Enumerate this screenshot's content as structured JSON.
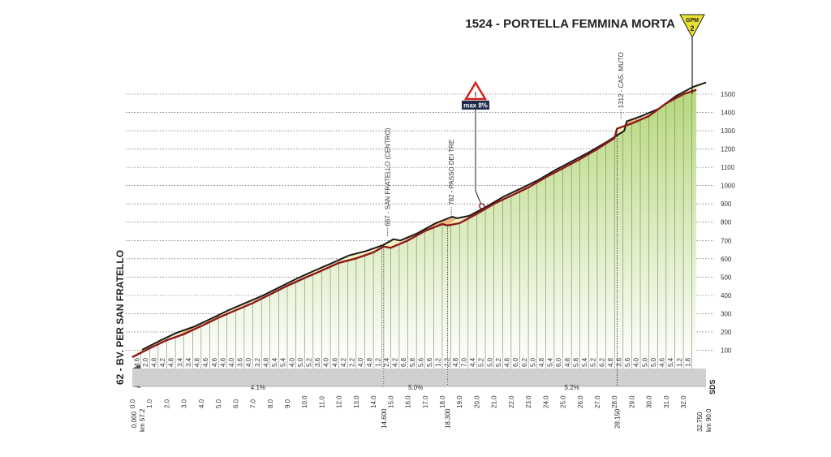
{
  "chart_data": {
    "type": "area",
    "title": "",
    "summit_label": "1524 - PORTELLA FEMMINA MORTA",
    "kom_badge": {
      "text": "GPM",
      "category": "2",
      "color": "#e8e030"
    },
    "start_label": "62 - BV. PER SAN FRATELLO",
    "warning_label": "max 8%",
    "logo_text": "SDS",
    "x_ticks": [
      "0.0",
      "1.0",
      "2.0",
      "3.0",
      "4.0",
      "5.0",
      "6.0",
      "7.0",
      "8.0",
      "9.0",
      "10.0",
      "11.0",
      "12.0",
      "13.0",
      "14.0",
      "15.0",
      "16.0",
      "17.0",
      "18.0",
      "19.0",
      "20.0",
      "21.0",
      "22.0",
      "23.0",
      "24.0",
      "25.0",
      "26.0",
      "27.0",
      "28.0",
      "29.0",
      "30.0",
      "31.0",
      "32.0"
    ],
    "x_tick_values": [
      0,
      1,
      2,
      3,
      4,
      5,
      6,
      7,
      8,
      9,
      10,
      11,
      12,
      13,
      14,
      15,
      16,
      17,
      18,
      19,
      20,
      21,
      22,
      23,
      24,
      25,
      26,
      27,
      28,
      29,
      30,
      31,
      32
    ],
    "y_ticks": [
      "100",
      "200",
      "300",
      "400",
      "500",
      "600",
      "700",
      "800",
      "900",
      "1000",
      "1100",
      "1200",
      "1300",
      "1400",
      "1500"
    ],
    "y_tick_values": [
      100,
      200,
      300,
      400,
      500,
      600,
      700,
      800,
      900,
      1000,
      1100,
      1200,
      1300,
      1400,
      1500
    ],
    "xlim": [
      0,
      32.75
    ],
    "ylim": [
      0,
      1500
    ],
    "profile": [
      {
        "km": 0.0,
        "alt": 62
      },
      {
        "km": 1.0,
        "alt": 110
      },
      {
        "km": 2.0,
        "alt": 155
      },
      {
        "km": 3.0,
        "alt": 188
      },
      {
        "km": 4.0,
        "alt": 232
      },
      {
        "km": 5.0,
        "alt": 278
      },
      {
        "km": 6.0,
        "alt": 318
      },
      {
        "km": 7.0,
        "alt": 358
      },
      {
        "km": 8.0,
        "alt": 405
      },
      {
        "km": 9.0,
        "alt": 452
      },
      {
        "km": 10.0,
        "alt": 495
      },
      {
        "km": 11.0,
        "alt": 535
      },
      {
        "km": 12.0,
        "alt": 578
      },
      {
        "km": 13.0,
        "alt": 602
      },
      {
        "km": 14.0,
        "alt": 635
      },
      {
        "km": 14.6,
        "alt": 667
      },
      {
        "km": 15.0,
        "alt": 660
      },
      {
        "km": 16.0,
        "alt": 700
      },
      {
        "km": 17.0,
        "alt": 752
      },
      {
        "km": 18.0,
        "alt": 790
      },
      {
        "km": 18.3,
        "alt": 782
      },
      {
        "km": 19.0,
        "alt": 795
      },
      {
        "km": 20.0,
        "alt": 845
      },
      {
        "km": 21.0,
        "alt": 900
      },
      {
        "km": 22.0,
        "alt": 945
      },
      {
        "km": 23.0,
        "alt": 990
      },
      {
        "km": 24.0,
        "alt": 1045
      },
      {
        "km": 25.0,
        "alt": 1095
      },
      {
        "km": 26.0,
        "alt": 1145
      },
      {
        "km": 27.0,
        "alt": 1200
      },
      {
        "km": 28.0,
        "alt": 1260
      },
      {
        "km": 28.15,
        "alt": 1312
      },
      {
        "km": 29.0,
        "alt": 1340
      },
      {
        "km": 30.0,
        "alt": 1380
      },
      {
        "km": 31.0,
        "alt": 1450
      },
      {
        "km": 32.0,
        "alt": 1500
      },
      {
        "km": 32.75,
        "alt": 1524
      }
    ],
    "gradients": [
      {
        "km": 0.25,
        "label": "4.6"
      },
      {
        "km": 0.75,
        "label": "2.0"
      },
      {
        "km": 1.25,
        "label": "4.8"
      },
      {
        "km": 1.75,
        "label": "4.2"
      },
      {
        "km": 2.25,
        "label": "4.8"
      },
      {
        "km": 2.75,
        "label": "3.4"
      },
      {
        "km": 3.25,
        "label": "3.4"
      },
      {
        "km": 3.75,
        "label": "4.8"
      },
      {
        "km": 4.25,
        "label": "4.6"
      },
      {
        "km": 4.75,
        "label": "4.6"
      },
      {
        "km": 5.25,
        "label": "4.6"
      },
      {
        "km": 5.75,
        "label": "4.0"
      },
      {
        "km": 6.25,
        "label": "3.6"
      },
      {
        "km": 6.75,
        "label": "4.0"
      },
      {
        "km": 7.25,
        "label": "3.2"
      },
      {
        "km": 7.75,
        "label": "4.8"
      },
      {
        "km": 8.25,
        "label": "5.4"
      },
      {
        "km": 8.75,
        "label": "5.4"
      },
      {
        "km": 9.25,
        "label": "4.0"
      },
      {
        "km": 9.75,
        "label": "5.0"
      },
      {
        "km": 10.25,
        "label": "5.2"
      },
      {
        "km": 10.75,
        "label": "3.6"
      },
      {
        "km": 11.25,
        "label": "4.0"
      },
      {
        "km": 11.75,
        "label": "4.6"
      },
      {
        "km": 12.25,
        "label": "4.2"
      },
      {
        "km": 12.75,
        "label": "2.2"
      },
      {
        "km": 13.25,
        "label": "4.0"
      },
      {
        "km": 13.75,
        "label": "4.8"
      },
      {
        "km": 14.25,
        "label": "1.2"
      },
      {
        "km": 14.75,
        "label": "2.4"
      },
      {
        "km": 15.25,
        "label": "4.2"
      },
      {
        "km": 15.75,
        "label": "6.8"
      },
      {
        "km": 16.25,
        "label": "5.8"
      },
      {
        "km": 16.75,
        "label": "5.6"
      },
      {
        "km": 17.25,
        "label": "5.6"
      },
      {
        "km": 17.75,
        "label": "1.2"
      },
      {
        "km": 18.25,
        "label": "2.2"
      },
      {
        "km": 18.75,
        "label": "4.8"
      },
      {
        "km": 19.25,
        "label": "7.0"
      },
      {
        "km": 19.75,
        "label": "4.4"
      },
      {
        "km": 20.25,
        "label": "5.2"
      },
      {
        "km": 20.75,
        "label": "5.0"
      },
      {
        "km": 21.25,
        "label": "5.2"
      },
      {
        "km": 21.75,
        "label": "4.8"
      },
      {
        "km": 22.25,
        "label": "6.0"
      },
      {
        "km": 22.75,
        "label": "6.2"
      },
      {
        "km": 23.25,
        "label": "5.0"
      },
      {
        "km": 23.75,
        "label": "4.8"
      },
      {
        "km": 24.25,
        "label": "5.4"
      },
      {
        "km": 24.75,
        "label": "6.0"
      },
      {
        "km": 25.25,
        "label": "4.8"
      },
      {
        "km": 25.75,
        "label": "5.8"
      },
      {
        "km": 26.25,
        "label": "5.4"
      },
      {
        "km": 26.75,
        "label": "5.2"
      },
      {
        "km": 27.25,
        "label": "6.2"
      },
      {
        "km": 27.75,
        "label": "4.8"
      },
      {
        "km": 28.25,
        "label": "3.6"
      },
      {
        "km": 28.75,
        "label": "5.6"
      },
      {
        "km": 29.25,
        "label": "4.0"
      },
      {
        "km": 29.75,
        "label": "5.0"
      },
      {
        "km": 30.25,
        "label": "5.0"
      },
      {
        "km": 30.75,
        "label": "4.6"
      },
      {
        "km": 31.25,
        "label": "5.4"
      },
      {
        "km": 31.75,
        "label": "1.2"
      },
      {
        "km": 32.25,
        "label": "1.8"
      }
    ],
    "sections": [
      {
        "from": 0.0,
        "to": 14.6,
        "label": "4.1%"
      },
      {
        "from": 14.6,
        "to": 18.3,
        "label": "5.0%"
      },
      {
        "from": 18.3,
        "to": 32.75,
        "label": "5.2%"
      }
    ],
    "markers": [
      {
        "km": 14.6,
        "alt": 667,
        "label": "667 - SAN FRATELLO (CENTRO)",
        "dist": "14.600"
      },
      {
        "km": 18.3,
        "alt": 782,
        "label": "782 - PASSO DEI TRE",
        "dist": "18.300"
      },
      {
        "km": 28.15,
        "alt": 1312,
        "label": "1312 - CAS. MUTO",
        "dist": "28.150"
      }
    ],
    "warning_km": 20.3,
    "start_dist": "0.000",
    "start_km": "km 57.2",
    "end_dist": "32.750",
    "end_km": "km 90.0",
    "colors": {
      "road_top": "#f6efc0",
      "road_edge": "#1a1a1a",
      "steep": "#eeb07a",
      "fill_top": "#b6d87c",
      "fill_bottom": "#ffffff",
      "profile_line": "#8e1a1a",
      "strip": "#d0d0d0",
      "warning": "#d62020",
      "label_box": "#1d2a4a"
    }
  }
}
